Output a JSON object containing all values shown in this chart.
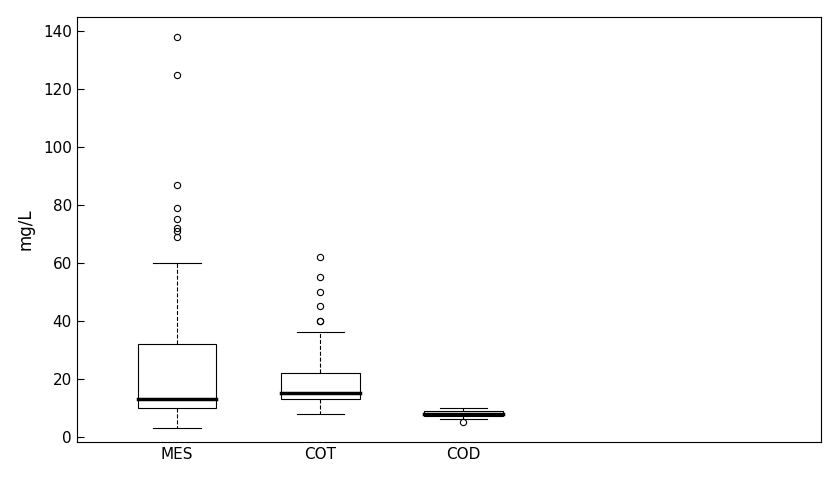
{
  "categories": [
    "MES",
    "COT",
    "COD"
  ],
  "ylabel": "mg/L",
  "ylim": [
    -2,
    145
  ],
  "yticks": [
    0,
    20,
    40,
    60,
    80,
    100,
    120,
    140
  ],
  "background_color": "white",
  "boxes": [
    {
      "q1": 10.0,
      "median": 13.0,
      "q3": 32.0,
      "whisker_low": 3.0,
      "whisker_high": 60.0,
      "outliers": [
        69,
        71,
        72,
        75,
        79,
        87,
        125,
        138
      ]
    },
    {
      "q1": 13.0,
      "median": 15.0,
      "q3": 22.0,
      "whisker_low": 8.0,
      "whisker_high": 36.0,
      "outliers": [
        40,
        40,
        45,
        50,
        55,
        62
      ]
    },
    {
      "q1": 7.0,
      "median": 8.0,
      "q3": 9.0,
      "whisker_low": 6.0,
      "whisker_high": 10.0,
      "outliers": [
        5
      ]
    }
  ],
  "positions": [
    1,
    2,
    3
  ],
  "xlim": [
    0.3,
    5.5
  ],
  "box_width": 0.55,
  "line_width": 0.8,
  "median_lw": 2.5,
  "cap_ratio": 0.6,
  "outlier_ms": 4.5,
  "ylabel_fontsize": 12,
  "tick_fontsize": 11
}
